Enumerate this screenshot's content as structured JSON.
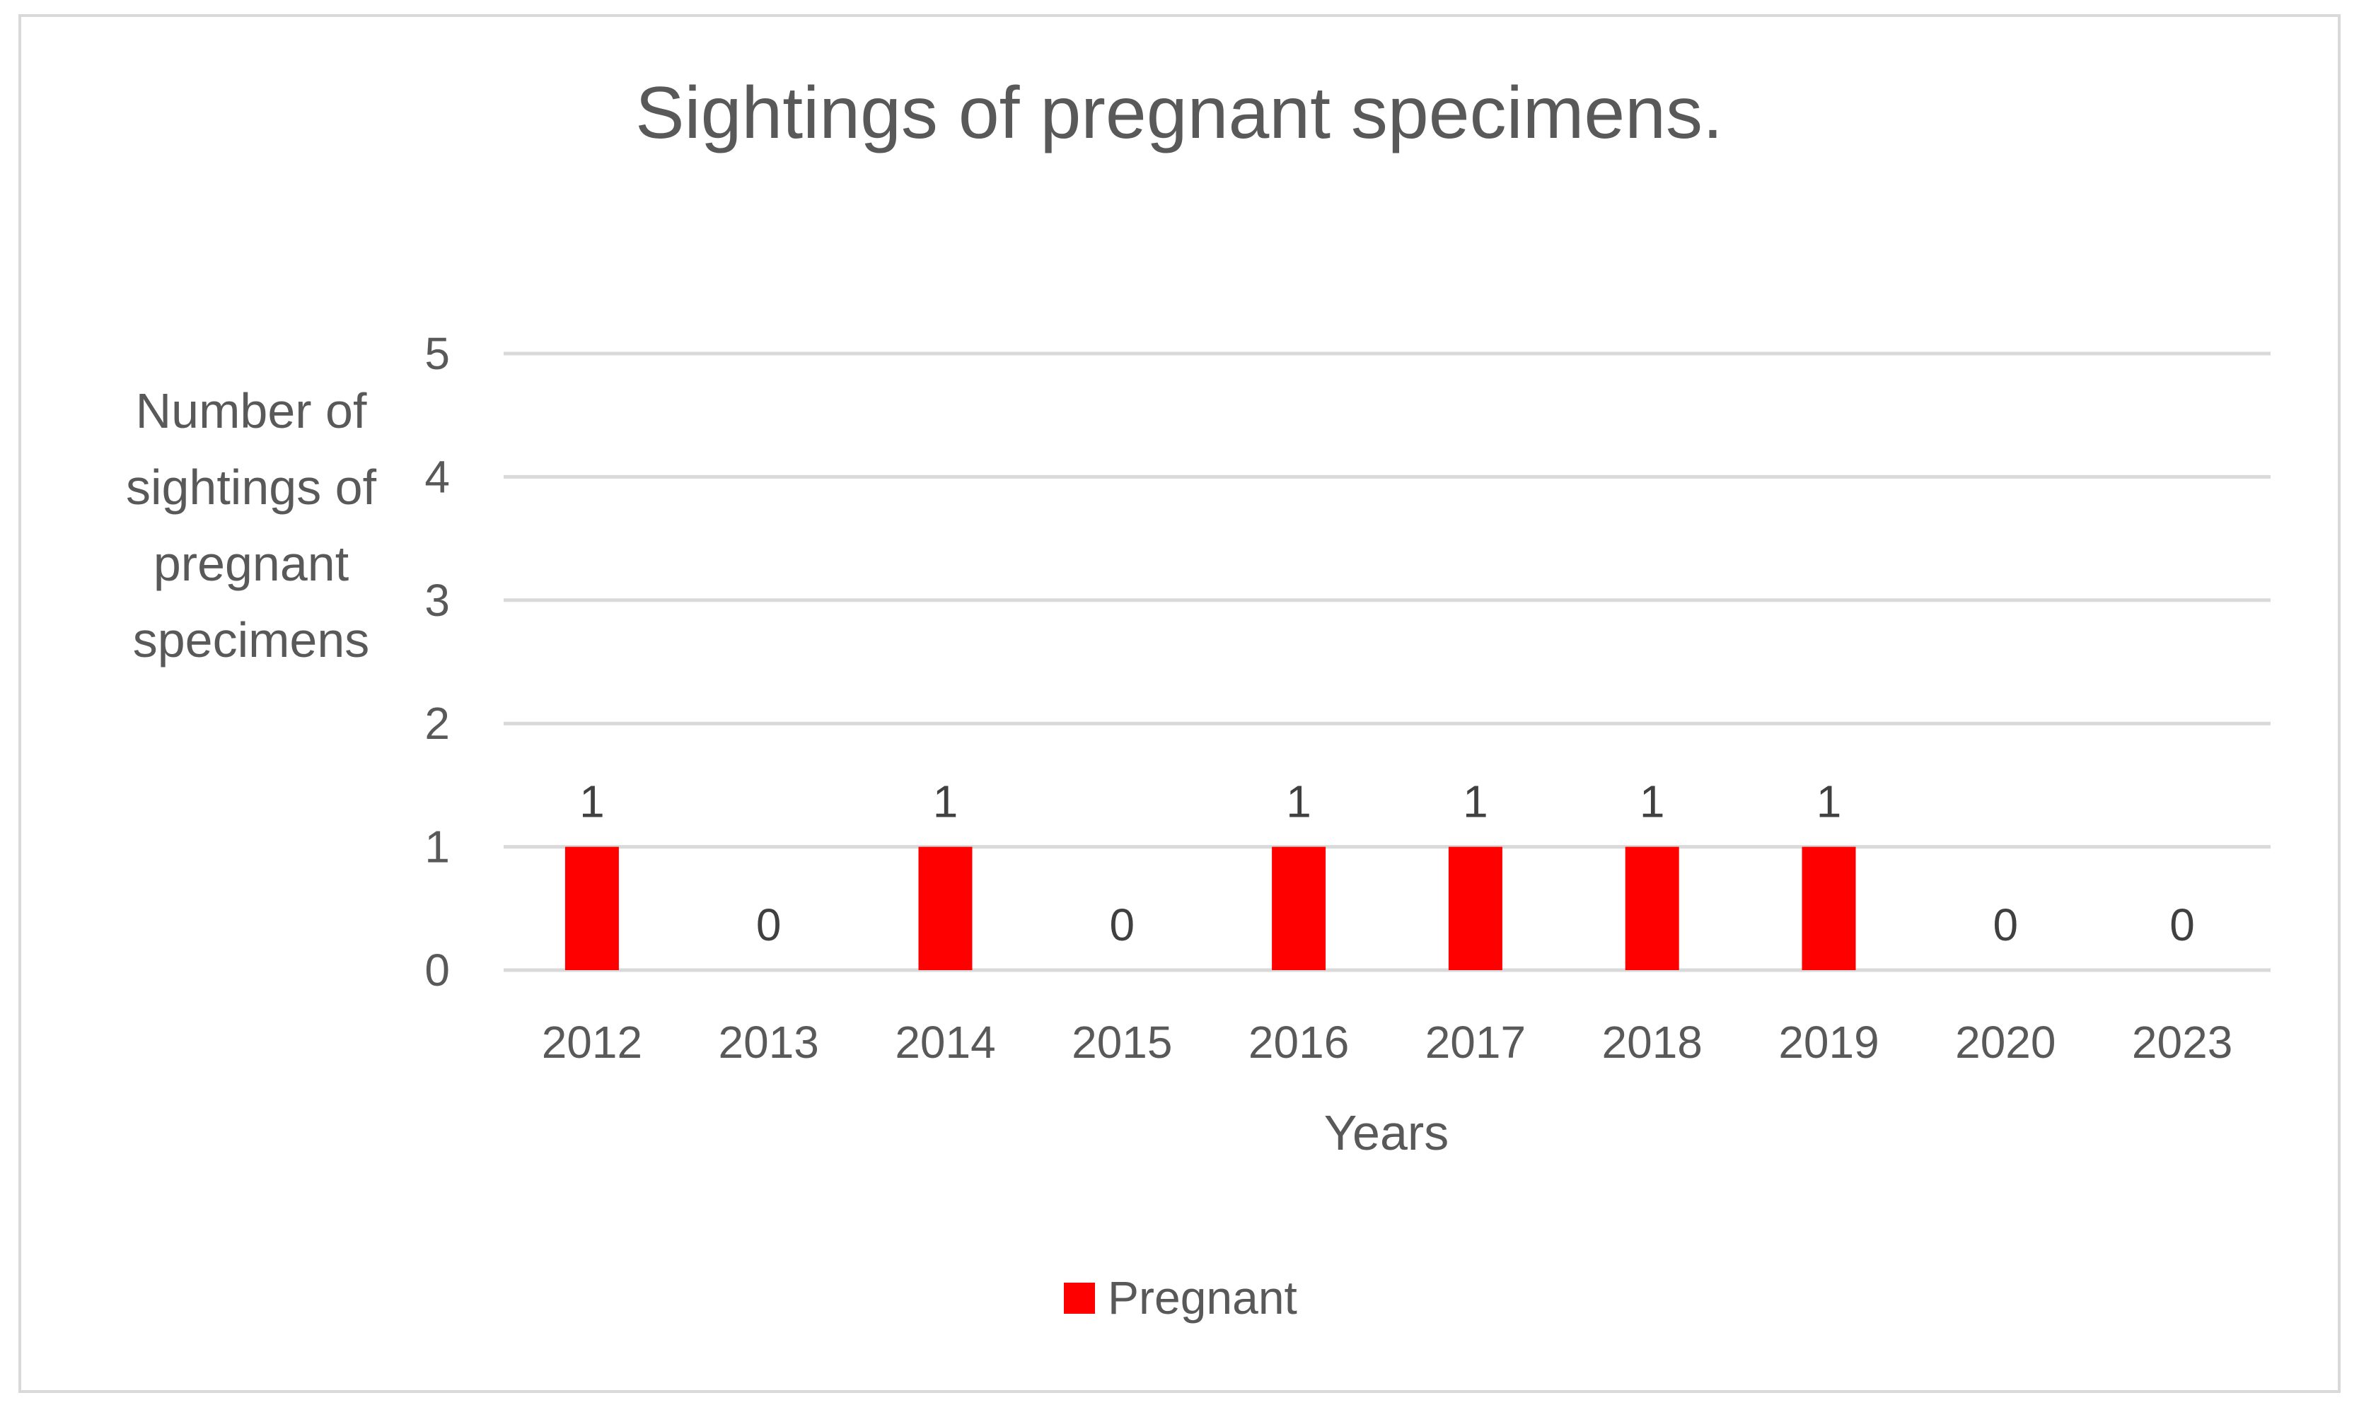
{
  "chart_data": {
    "type": "bar",
    "title": "Sightings of pregnant specimens.",
    "xlabel": "Years",
    "ylabel_lines": [
      "Number of",
      "sightings of",
      "pregnant",
      "specimens"
    ],
    "categories": [
      "2012",
      "2013",
      "2014",
      "2015",
      "2016",
      "2017",
      "2018",
      "2019",
      "2020",
      "2023"
    ],
    "series": [
      {
        "name": "Pregnant",
        "color": "#ff0000",
        "values": [
          1,
          0,
          1,
          0,
          1,
          1,
          1,
          1,
          0,
          0
        ]
      }
    ],
    "ylim": [
      0,
      5
    ],
    "yticks": [
      0,
      1,
      2,
      3,
      4,
      5
    ],
    "grid": true,
    "legend_position": "bottom",
    "gridline_color": "#d9d9d9"
  }
}
